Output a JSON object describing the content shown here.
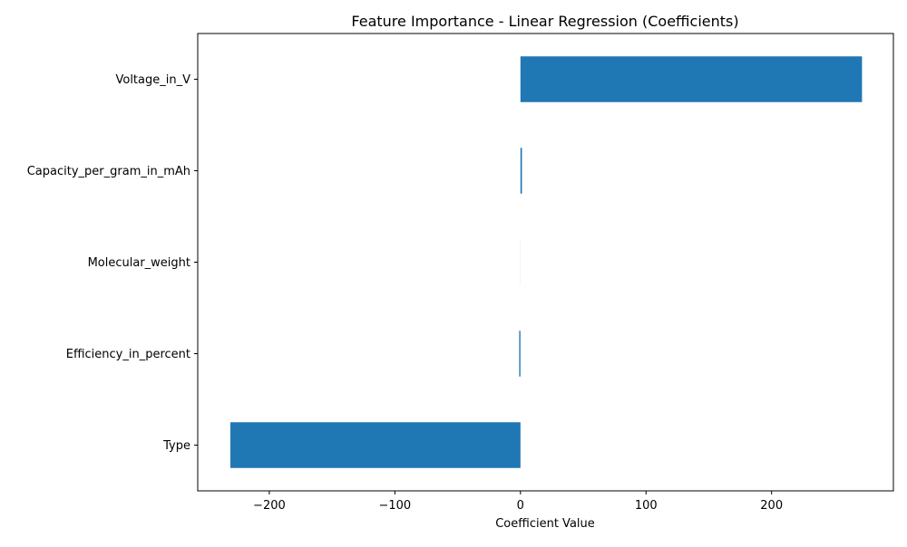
{
  "chart_data": {
    "type": "bar",
    "orientation": "horizontal",
    "title": "Feature Importance - Linear Regression (Coefficients)",
    "xlabel": "Coefficient Value",
    "ylabel": "",
    "categories": [
      "Voltage_in_V",
      "Capacity_per_gram_in_mAh",
      "Molecular_weight",
      "Efficiency_in_percent",
      "Type"
    ],
    "values": [
      272,
      1.2,
      0.05,
      -1.0,
      -231
    ],
    "xlim": [
      -257,
      297
    ],
    "xticks": [
      -200,
      -100,
      0,
      100,
      200
    ],
    "xtick_labels": [
      "−200",
      "−100",
      "0",
      "100",
      "200"
    ],
    "grid": false,
    "legend": "none",
    "bar_color": "#1f77b4"
  }
}
